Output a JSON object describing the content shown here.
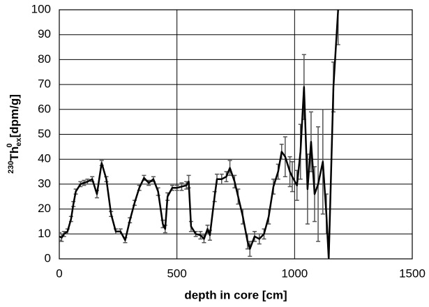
{
  "chart_data": {
    "type": "line",
    "xlabel": "depth in core [cm]",
    "ylabel": {
      "pre": "230",
      "main": "Th",
      "sub": "ex",
      "sup": "0",
      "unit": "[dpm/g]"
    },
    "x": [
      0,
      10,
      20,
      35,
      50,
      60,
      70,
      90,
      105,
      120,
      140,
      160,
      180,
      200,
      220,
      240,
      260,
      280,
      300,
      320,
      340,
      360,
      380,
      400,
      420,
      440,
      450,
      460,
      480,
      500,
      520,
      540,
      550,
      560,
      580,
      600,
      615,
      630,
      640,
      660,
      670,
      690,
      710,
      725,
      745,
      760,
      780,
      800,
      810,
      830,
      850,
      870,
      890,
      910,
      930,
      945,
      960,
      980,
      990,
      1010,
      1025,
      1040,
      1055,
      1070,
      1085,
      1100,
      1120,
      1135,
      1145,
      1165,
      1185
    ],
    "values": [
      9,
      8.5,
      10,
      11,
      16,
      22,
      27,
      30,
      30.5,
      31,
      32,
      26,
      38.5,
      32,
      18,
      11,
      11,
      7.5,
      15.5,
      22.5,
      28.5,
      32.5,
      30.5,
      32,
      27,
      14,
      12,
      25,
      28.5,
      28.5,
      29,
      29.5,
      31,
      13,
      10,
      9.5,
      8,
      12,
      9.5,
      25,
      32,
      32,
      33,
      36.5,
      31,
      25,
      17,
      7,
      4,
      9,
      8,
      10,
      17,
      29,
      35,
      43,
      41,
      35,
      33,
      29.5,
      43,
      69,
      28,
      47,
      26,
      30,
      39,
      18,
      0,
      69,
      100
    ],
    "errors": [
      1.5,
      1.5,
      1,
      1,
      1,
      1,
      1,
      1,
      1,
      1,
      1,
      1.5,
      1,
      1,
      1,
      1,
      1,
      1,
      1,
      1,
      1,
      1,
      1,
      1,
      1.5,
      1.5,
      1.5,
      1.5,
      1,
      1,
      1.5,
      1.5,
      2.5,
      2,
      1,
      1.5,
      1.5,
      1.5,
      2,
      2,
      2,
      2,
      2,
      3,
      2.5,
      3,
      3,
      3,
      3,
      2,
      2,
      2,
      3,
      3,
      3,
      3,
      8,
      6,
      6,
      6,
      11,
      13,
      14,
      12,
      11,
      23,
      21,
      8,
      0,
      10,
      14
    ],
    "color": "#000000",
    "errcolor": "#555555",
    "xlim": [
      0,
      1500
    ],
    "xticks": [
      0,
      500,
      1000,
      1500
    ],
    "ylim": [
      0,
      100
    ],
    "yticks": [
      0,
      10,
      20,
      30,
      40,
      50,
      60,
      70,
      80,
      90,
      100
    ],
    "grid": true
  }
}
